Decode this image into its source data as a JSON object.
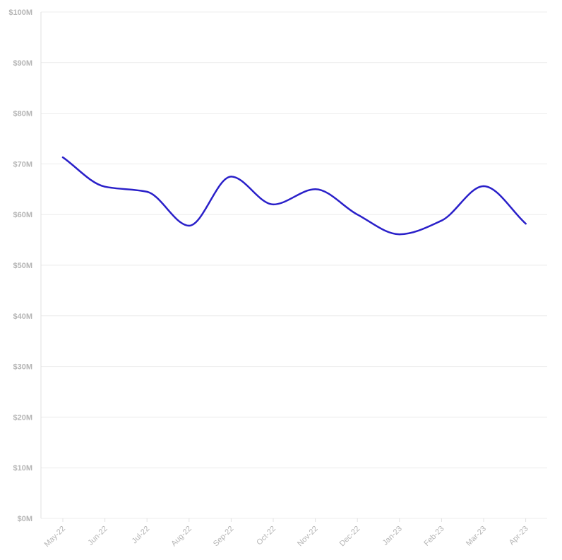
{
  "chart_data": {
    "type": "line",
    "title": "",
    "xlabel": "",
    "ylabel": "",
    "categories": [
      "May-22",
      "Jun-22",
      "Jul-22",
      "Aug-22",
      "Sep-22",
      "Oct-22",
      "Nov-22",
      "Dec-22",
      "Jan-23",
      "Feb-23",
      "Mar-23",
      "Apr-23"
    ],
    "series": [
      {
        "values": [
          71.3,
          65.5,
          64.5,
          57.8,
          67.5,
          62.0,
          65.0,
          60.0,
          56.1,
          58.8,
          65.6,
          58.2
        ]
      }
    ],
    "yticks": [
      "$0M",
      "$10M",
      "$20M",
      "$30M",
      "$40M",
      "$50M",
      "$60M",
      "$70M",
      "$80M",
      "$90M",
      "$100M"
    ],
    "ylim": [
      0,
      100
    ],
    "grid": true,
    "curve": "smooth",
    "colors": {
      "line": "#2a20c9",
      "grid": "#ececec",
      "tick_text": "#b5b5b5"
    }
  }
}
